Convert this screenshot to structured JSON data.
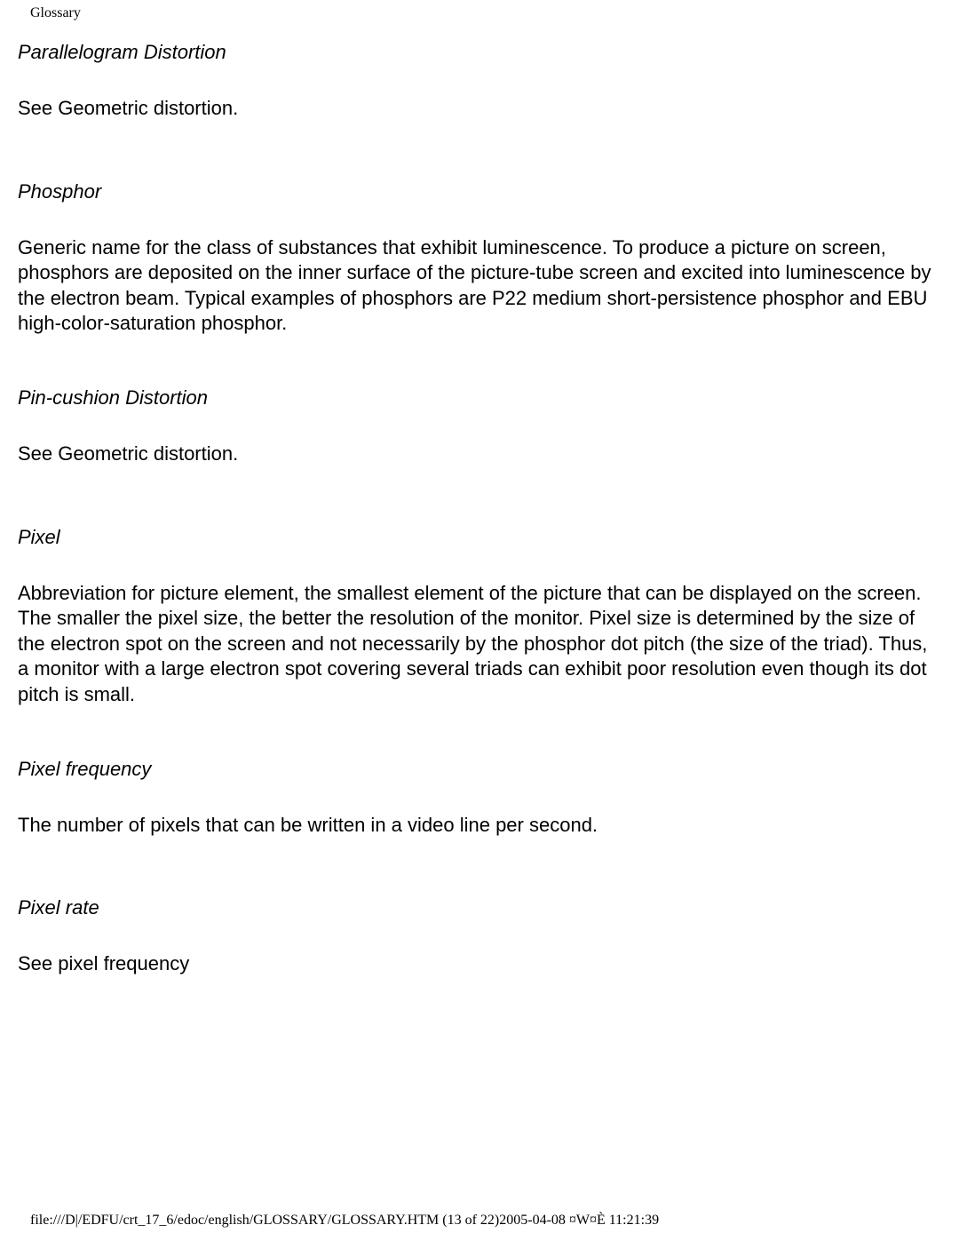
{
  "header": {
    "label": "Glossary"
  },
  "entries": [
    {
      "term": "Parallelogram Distortion",
      "definition": "See Geometric distortion."
    },
    {
      "term": "Phosphor",
      "definition": "Generic name for the class of substances that exhibit luminescence. To produce a picture on screen, phosphors are deposited on the inner surface of the picture-tube screen and excited into luminescence by the electron beam. Typical examples of phosphors are P22 medium short-persistence phosphor and EBU high-color-saturation phosphor."
    },
    {
      "term": "Pin-cushion Distortion",
      "definition": "See Geometric distortion."
    },
    {
      "term": "Pixel",
      "definition": "Abbreviation for picture element, the smallest element of the picture that can be displayed on the screen. The smaller the pixel size, the better the resolution of the monitor. Pixel size is determined by the size of the electron spot on the screen and not necessarily by the phosphor dot pitch (the size of the triad). Thus, a monitor with a large electron spot covering several triads can exhibit poor resolution even though its dot pitch is small."
    },
    {
      "term": "Pixel frequency",
      "definition": "The number of pixels that can be written in a video line per second."
    },
    {
      "term": "Pixel rate",
      "definition": "See pixel frequency"
    }
  ],
  "footer": {
    "text": "file:///D|/EDFU/crt_17_6/edoc/english/GLOSSARY/GLOSSARY.HTM (13 of 22)2005-04-08 ¤W¤È 11:21:39"
  }
}
